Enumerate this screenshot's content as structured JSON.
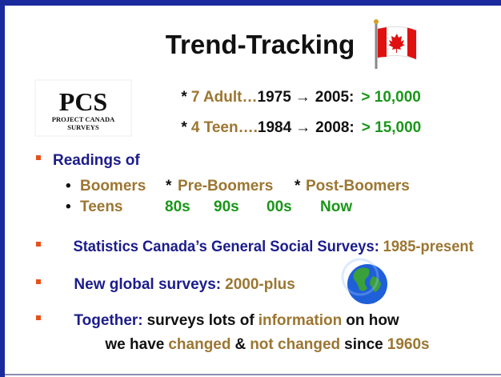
{
  "title": "Trend-Tracking",
  "logo": {
    "mark": "PCS",
    "line1": "PROJECT CANADA",
    "line2": "SURVEYS"
  },
  "surveys": [
    {
      "bullet": "*",
      "label": "7 Adult…",
      "from": "1975",
      "arrow": "→",
      "to": "2005:",
      "count": "> 10,000"
    },
    {
      "bullet": "*",
      "label": "4 Teen….",
      "from": "1984",
      "arrow": "→",
      "to": "2008:",
      "count": "> 15,000"
    }
  ],
  "readings": {
    "head": "Readings of",
    "dot": "•",
    "groups": [
      "Boomers",
      "*",
      "Pre-Boomers",
      "*",
      "Post-Boomers"
    ],
    "teens": "Teens",
    "decades": [
      "80s",
      "90s",
      "00s",
      "Now"
    ]
  },
  "statistics": {
    "lead": "Statistics Canada’s General Social Surveys:",
    "span": "1985-present"
  },
  "global": {
    "lead": "New global surveys:",
    "span": "2000-plus"
  },
  "together": {
    "lead": "Together:",
    "t1": "surveys lots of",
    "t2": "information",
    "t3": "on how",
    "t4": "we have",
    "t5": "changed",
    "t6": "&",
    "t7": "not changed",
    "t8": "since",
    "t9": "1960s"
  }
}
